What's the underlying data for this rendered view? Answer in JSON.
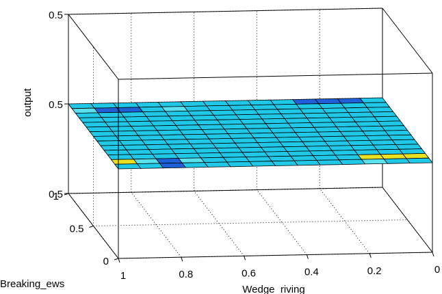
{
  "chart_data": {
    "type": "surface",
    "x_axis": {
      "label": "Wedge_riving",
      "ticks": [
        "1",
        "0.8",
        "0.6",
        "0.4",
        "0.2",
        "0"
      ],
      "range": [
        0,
        1
      ]
    },
    "y_axis": {
      "label": "Breaking_ews",
      "ticks": [
        "0",
        "0.5",
        "1"
      ],
      "range": [
        0,
        1
      ]
    },
    "z_axis": {
      "label": "output",
      "ticks": [
        "0.5",
        "0.5",
        "0.5"
      ]
    },
    "grid": true,
    "surface": {
      "x_samples": 15,
      "y_samples": 15,
      "constant_value": 0.5,
      "base_color": "#1ec8e6",
      "highlight_colors": {
        "dark_blue": "#1f5fd8",
        "light_cyan": "#5be0ee",
        "yellow": "#e8e020"
      },
      "highlighted_cells": [
        {
          "xi": 0,
          "yi": 12,
          "color": "light_cyan"
        },
        {
          "xi": 1,
          "yi": 12,
          "color": "dark_blue"
        },
        {
          "xi": 2,
          "yi": 12,
          "color": "dark_blue"
        },
        {
          "xi": 4,
          "yi": 12,
          "color": "light_cyan"
        },
        {
          "xi": 10,
          "yi": 13,
          "color": "dark_blue"
        },
        {
          "xi": 10,
          "yi": 14,
          "color": "yellow"
        },
        {
          "xi": 11,
          "yi": 13,
          "color": "dark_blue"
        },
        {
          "xi": 12,
          "yi": 13,
          "color": "dark_blue"
        },
        {
          "xi": 0,
          "yi": 1,
          "color": "yellow"
        },
        {
          "xi": 1,
          "yi": 1,
          "color": "light_cyan"
        },
        {
          "xi": 2,
          "yi": 1,
          "color": "dark_blue"
        },
        {
          "xi": 2,
          "yi": 0,
          "color": "dark_blue"
        },
        {
          "xi": 3,
          "yi": 1,
          "color": "light_cyan"
        },
        {
          "xi": 11,
          "yi": 1,
          "color": "yellow"
        },
        {
          "xi": 12,
          "yi": 1,
          "color": "yellow"
        },
        {
          "xi": 13,
          "yi": 1,
          "color": "yellow"
        },
        {
          "xi": 11,
          "yi": 0,
          "color": "light_cyan"
        }
      ]
    }
  }
}
